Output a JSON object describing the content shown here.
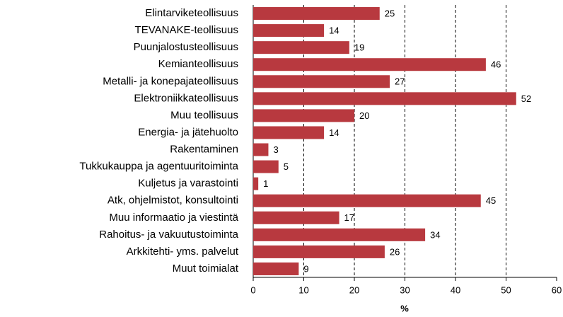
{
  "chart_data": {
    "type": "bar",
    "orientation": "horizontal",
    "categories": [
      "Elintarviketeollisuus",
      "TEVANAKE-teollisuus",
      "Puunjalostusteollisuus",
      "Kemianteollisuus",
      "Metalli- ja konepajateollisuus",
      "Elektroniikkateollisuus",
      "Muu teollisuus",
      "Energia- ja jätehuolto",
      "Rakentaminen",
      "Tukkukauppa ja agentuuritoiminta",
      "Kuljetus ja varastointi",
      "Atk, ohjelmistot, konsultointi",
      "Muu informaatio ja viestintä",
      "Rahoitus- ja vakuutustoiminta",
      "Arkkitehti- yms. palvelut",
      "Muut toimialat"
    ],
    "values": [
      25,
      14,
      19,
      46,
      27,
      52,
      20,
      14,
      3,
      5,
      1,
      45,
      17,
      34,
      26,
      9
    ],
    "color": "#b8393f",
    "xlim": [
      0,
      60
    ],
    "xticks": [
      0,
      10,
      20,
      30,
      40,
      50,
      60
    ],
    "xlabel": "%",
    "grid": true
  }
}
